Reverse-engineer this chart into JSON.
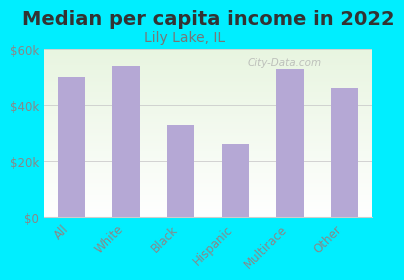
{
  "title": "Median per capita income in 2022",
  "subtitle": "Lily Lake, IL",
  "categories": [
    "All",
    "White",
    "Black",
    "Hispanic",
    "Multirace",
    "Other"
  ],
  "values": [
    50000,
    54000,
    33000,
    26000,
    53000,
    46000
  ],
  "bar_color": "#b5a8d5",
  "background_outer": "#00eeff",
  "title_color": "#333333",
  "subtitle_color": "#777777",
  "tick_label_color": "#888888",
  "grid_color": "#cccccc",
  "ylim": [
    0,
    60000
  ],
  "yticks": [
    0,
    20000,
    40000,
    60000
  ],
  "ytick_labels": [
    "$0",
    "$20k",
    "$40k",
    "$60k"
  ],
  "watermark": "City-Data.com",
  "title_fontsize": 14,
  "subtitle_fontsize": 10,
  "axis_fontsize": 8.5
}
